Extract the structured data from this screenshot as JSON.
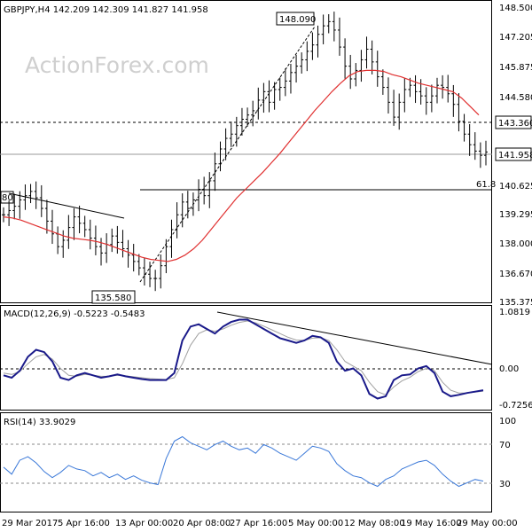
{
  "chart_data": [
    {
      "type": "candlestick",
      "title": "GBPJPY,H4  142.209 142.309 141.827 141.958",
      "watermark": "ActionForex.com",
      "ylim": [
        135.0,
        148.95
      ],
      "yticks": [
        "148.500",
        "147.205",
        "145.875",
        "144.580",
        "143.360",
        "141.958",
        "140.625",
        "139.295",
        "138.000",
        "136.670",
        "135.375"
      ],
      "xticks": [
        "29 Mar 2017",
        "5 Apr 16:00",
        "13 Apr 00:00",
        "20 Apr 08:00",
        "27 Apr 16:00",
        "5 May 00:00",
        "12 May 08:00",
        "19 May 16:00",
        "29 May 00:00"
      ],
      "level_labels": {
        "resistance": "143.360",
        "current": "141.958",
        "fib": "61.8",
        "left_tag": "80"
      },
      "annotations": {
        "high": "148.090",
        "low": "135.580"
      },
      "colors": {
        "price": "#000000",
        "ma": "#e03030",
        "grid": "#000000"
      },
      "close_series": [
        139.0,
        139.2,
        139.4,
        139.7,
        139.9,
        140.1,
        139.8,
        139.3,
        138.7,
        138.1,
        137.5,
        137.8,
        138.4,
        138.9,
        138.6,
        138.3,
        137.9,
        137.5,
        137.2,
        137.6,
        138.0,
        137.7,
        137.4,
        137.1,
        136.8,
        136.5,
        136.2,
        136.0,
        136.0,
        136.6,
        137.5,
        138.3,
        139.0,
        139.6,
        139.3,
        139.7,
        140.2,
        139.9,
        140.6,
        141.4,
        142.1,
        142.6,
        142.8,
        143.2,
        143.5,
        143.7,
        143.9,
        144.4,
        144.8,
        144.3,
        144.9,
        145.0,
        145.3,
        145.7,
        146.0,
        146.3,
        146.7,
        147.0,
        147.5,
        147.9,
        148.1,
        147.7,
        146.9,
        146.0,
        145.4,
        145.8,
        146.3,
        146.8,
        146.2,
        145.5,
        145.0,
        144.3,
        143.6,
        144.3,
        144.9,
        145.1,
        144.8,
        144.6,
        144.3,
        144.6,
        145.1,
        145.0,
        144.7,
        144.2,
        143.4,
        142.8,
        142.3,
        142.0,
        141.8,
        141.958
      ],
      "ma_series": [
        138.9,
        138.85,
        138.75,
        138.6,
        138.45,
        138.3,
        138.15,
        138.0,
        137.9,
        137.85,
        137.8,
        137.72,
        137.6,
        137.45,
        137.3,
        137.15,
        137.0,
        136.9,
        136.85,
        136.8,
        136.9,
        137.1,
        137.4,
        137.8,
        138.3,
        138.8,
        139.3,
        139.8,
        140.2,
        140.6,
        141.0,
        141.45,
        141.9,
        142.4,
        142.9,
        143.4,
        143.9,
        144.35,
        144.8,
        145.2,
        145.55,
        145.75,
        145.8,
        145.8,
        145.75,
        145.6,
        145.5,
        145.35,
        145.2,
        145.1,
        145.0,
        144.9,
        144.8,
        144.5,
        144.1,
        143.7
      ],
      "macd_label": "MACD(12,26,9) -0.5223 -0.5483",
      "macd_ylim": [
        -0.9,
        1.2
      ],
      "macd_yticks": [
        "1.0819",
        "0.00",
        "-0.7256"
      ],
      "macd_series": [
        -0.2,
        -0.25,
        -0.1,
        0.2,
        0.35,
        0.3,
        0.1,
        -0.25,
        -0.3,
        -0.2,
        -0.15,
        -0.2,
        -0.25,
        -0.22,
        -0.18,
        -0.22,
        -0.25,
        -0.28,
        -0.3,
        -0.3,
        -0.3,
        -0.15,
        0.55,
        0.85,
        0.9,
        0.8,
        0.7,
        0.85,
        0.95,
        1.0,
        1.0,
        0.9,
        0.8,
        0.7,
        0.6,
        0.55,
        0.5,
        0.55,
        0.65,
        0.62,
        0.5,
        0.1,
        -0.1,
        -0.05,
        -0.2,
        -0.6,
        -0.7,
        -0.65,
        -0.3,
        -0.2,
        -0.18,
        -0.05,
        0.0,
        -0.15,
        -0.55,
        -0.65,
        -0.62,
        -0.58,
        -0.55,
        -0.52
      ],
      "macd_signal_series": [
        -0.15,
        -0.18,
        -0.12,
        0.05,
        0.2,
        0.25,
        0.15,
        -0.05,
        -0.2,
        -0.22,
        -0.18,
        -0.2,
        -0.22,
        -0.22,
        -0.2,
        -0.21,
        -0.23,
        -0.25,
        -0.27,
        -0.28,
        -0.29,
        -0.25,
        0.05,
        0.45,
        0.7,
        0.78,
        0.75,
        0.8,
        0.88,
        0.94,
        0.97,
        0.93,
        0.86,
        0.78,
        0.7,
        0.62,
        0.56,
        0.55,
        0.6,
        0.61,
        0.55,
        0.35,
        0.1,
        0.0,
        -0.1,
        -0.35,
        -0.55,
        -0.62,
        -0.45,
        -0.32,
        -0.24,
        -0.12,
        -0.05,
        -0.1,
        -0.35,
        -0.52,
        -0.58,
        -0.58,
        -0.56,
        -0.54
      ],
      "rsi_label": "RSI(14) 33.9029",
      "rsi_ylim": [
        0,
        110
      ],
      "rsi_yticks": [
        "100",
        "70",
        "30"
      ],
      "rsi_series": [
        50,
        42,
        58,
        62,
        55,
        45,
        38,
        44,
        52,
        48,
        46,
        40,
        44,
        38,
        42,
        36,
        40,
        35,
        32,
        30,
        60,
        80,
        85,
        78,
        74,
        70,
        76,
        80,
        74,
        70,
        72,
        66,
        76,
        72,
        66,
        62,
        58,
        66,
        74,
        72,
        68,
        54,
        46,
        40,
        38,
        32,
        28,
        36,
        40,
        48,
        52,
        56,
        58,
        52,
        42,
        34,
        28,
        32,
        36,
        34
      ]
    }
  ]
}
